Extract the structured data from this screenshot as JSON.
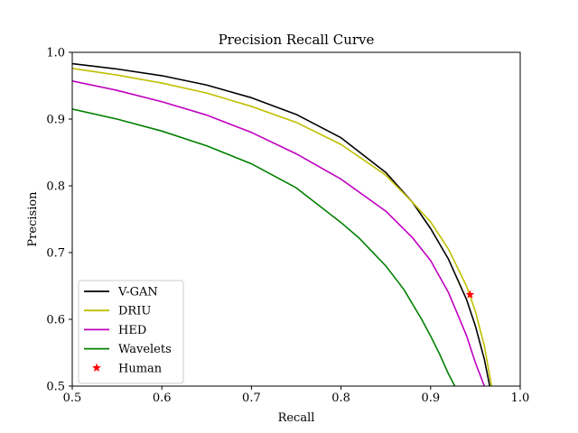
{
  "chart_data": {
    "type": "line",
    "title": "Precision Recall Curve",
    "xlabel": "Recall",
    "ylabel": "Precision",
    "xlim": [
      0.5,
      1.0
    ],
    "ylim": [
      0.5,
      1.0
    ],
    "xticks": [
      "0.5",
      "0.6",
      "0.7",
      "0.8",
      "0.9",
      "1.0"
    ],
    "yticks": [
      "0.5",
      "0.6",
      "0.7",
      "0.8",
      "0.9",
      "1.0"
    ],
    "grid": false,
    "legend_position": "lower-left",
    "series": [
      {
        "name": "V-GAN",
        "color": "#000000",
        "marker": "line",
        "x": [
          0.5,
          0.55,
          0.6,
          0.65,
          0.7,
          0.75,
          0.8,
          0.85,
          0.88,
          0.9,
          0.92,
          0.94,
          0.95,
          0.96,
          0.966
        ],
        "y": [
          0.983,
          0.975,
          0.965,
          0.951,
          0.932,
          0.907,
          0.872,
          0.82,
          0.775,
          0.736,
          0.69,
          0.63,
          0.59,
          0.54,
          0.5
        ]
      },
      {
        "name": "DRIU",
        "color": "#bfbf00",
        "marker": "line",
        "x": [
          0.5,
          0.55,
          0.6,
          0.65,
          0.7,
          0.75,
          0.8,
          0.85,
          0.88,
          0.9,
          0.92,
          0.94,
          0.95,
          0.96,
          0.968
        ],
        "y": [
          0.976,
          0.966,
          0.954,
          0.939,
          0.919,
          0.895,
          0.862,
          0.816,
          0.775,
          0.746,
          0.705,
          0.65,
          0.612,
          0.56,
          0.5
        ]
      },
      {
        "name": "HED",
        "color": "#bf00bf",
        "marker": "line",
        "x": [
          0.5,
          0.55,
          0.6,
          0.65,
          0.7,
          0.75,
          0.8,
          0.85,
          0.88,
          0.9,
          0.92,
          0.94,
          0.95,
          0.96
        ],
        "y": [
          0.957,
          0.943,
          0.926,
          0.906,
          0.88,
          0.848,
          0.81,
          0.762,
          0.722,
          0.688,
          0.64,
          0.576,
          0.535,
          0.5
        ]
      },
      {
        "name": "Wavelets",
        "color": "#008000",
        "marker": "line",
        "x": [
          0.5,
          0.55,
          0.6,
          0.65,
          0.7,
          0.75,
          0.8,
          0.82,
          0.85,
          0.87,
          0.89,
          0.9,
          0.91,
          0.92,
          0.927
        ],
        "y": [
          0.915,
          0.9,
          0.882,
          0.86,
          0.833,
          0.797,
          0.745,
          0.722,
          0.68,
          0.645,
          0.6,
          0.575,
          0.548,
          0.518,
          0.5
        ]
      },
      {
        "name": "Human",
        "color": "#ff0000",
        "marker": "star",
        "x": [
          0.944
        ],
        "y": [
          0.637
        ]
      }
    ]
  }
}
